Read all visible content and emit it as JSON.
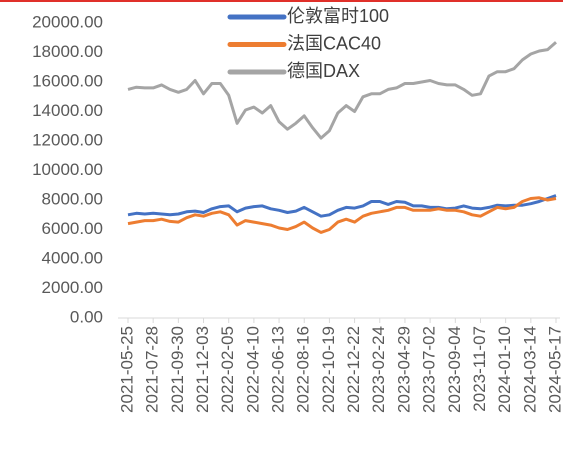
{
  "chart_data": {
    "type": "line",
    "categories": [
      "2021-05-25",
      null,
      null,
      "2021-07-28",
      null,
      null,
      "2021-09-30",
      null,
      null,
      "2021-12-03",
      null,
      null,
      "2022-02-05",
      null,
      null,
      "2022-04-10",
      null,
      null,
      "2022-06-13",
      null,
      null,
      "2022-08-16",
      null,
      null,
      "2022-10-19",
      null,
      null,
      "2022-12-22",
      null,
      null,
      "2023-02-24",
      null,
      null,
      "2023-04-29",
      null,
      null,
      "2023-07-02",
      null,
      null,
      "2023-09-04",
      null,
      null,
      "2023-11-07",
      null,
      null,
      "2024-01-10",
      null,
      null,
      "2024-03-14",
      null,
      null,
      "2024-05-17"
    ],
    "series": [
      {
        "name": "伦敦富时100",
        "color": "#4472c4",
        "values": [
          7000,
          7100,
          7050,
          7100,
          7050,
          7000,
          7050,
          7200,
          7250,
          7150,
          7400,
          7550,
          7600,
          7200,
          7450,
          7550,
          7600,
          7400,
          7300,
          7150,
          7250,
          7500,
          7200,
          6900,
          7000,
          7300,
          7500,
          7450,
          7600,
          7900,
          7900,
          7700,
          7900,
          7850,
          7600,
          7600,
          7500,
          7500,
          7400,
          7450,
          7600,
          7450,
          7400,
          7500,
          7650,
          7600,
          7650,
          7650,
          7750,
          7900,
          8100,
          8300
        ]
      },
      {
        "name": "法国CAC40",
        "color": "#ed7d31",
        "values": [
          6400,
          6500,
          6600,
          6600,
          6700,
          6550,
          6500,
          6800,
          7000,
          6900,
          7100,
          7200,
          7000,
          6300,
          6600,
          6500,
          6400,
          6300,
          6100,
          6000,
          6200,
          6500,
          6100,
          5800,
          6000,
          6500,
          6700,
          6500,
          6900,
          7100,
          7200,
          7300,
          7500,
          7500,
          7300,
          7300,
          7300,
          7400,
          7300,
          7300,
          7200,
          7000,
          6900,
          7200,
          7500,
          7400,
          7500,
          7900,
          8100,
          8150,
          8000,
          8100
        ]
      },
      {
        "name": "德国DAX",
        "color": "#a5a5a5",
        "values": [
          15500,
          15650,
          15600,
          15600,
          15800,
          15500,
          15300,
          15500,
          16100,
          15200,
          15900,
          15900,
          15100,
          13200,
          14100,
          14300,
          13900,
          14400,
          13300,
          12800,
          13200,
          13700,
          12900,
          12200,
          12700,
          13900,
          14400,
          14000,
          15000,
          15200,
          15200,
          15500,
          15600,
          15900,
          15900,
          16000,
          16100,
          15900,
          15800,
          15800,
          15500,
          15100,
          15200,
          16400,
          16700,
          16700,
          16900,
          17500,
          17900,
          18100,
          18200,
          18700
        ]
      }
    ],
    "ylim": [
      0,
      20000
    ],
    "yticks": [
      {
        "value": 0,
        "label": "0.00"
      },
      {
        "value": 2000,
        "label": "2000.00"
      },
      {
        "value": 4000,
        "label": "4000.00"
      },
      {
        "value": 6000,
        "label": "6000.00"
      },
      {
        "value": 8000,
        "label": "8000.00"
      },
      {
        "value": 10000,
        "label": "10000.00"
      },
      {
        "value": 12000,
        "label": "12000.00"
      },
      {
        "value": 14000,
        "label": "14000.00"
      },
      {
        "value": 16000,
        "label": "16000.00"
      },
      {
        "value": 18000,
        "label": "18000.00"
      },
      {
        "value": 20000,
        "label": "20000.00"
      }
    ],
    "legend": "top"
  }
}
